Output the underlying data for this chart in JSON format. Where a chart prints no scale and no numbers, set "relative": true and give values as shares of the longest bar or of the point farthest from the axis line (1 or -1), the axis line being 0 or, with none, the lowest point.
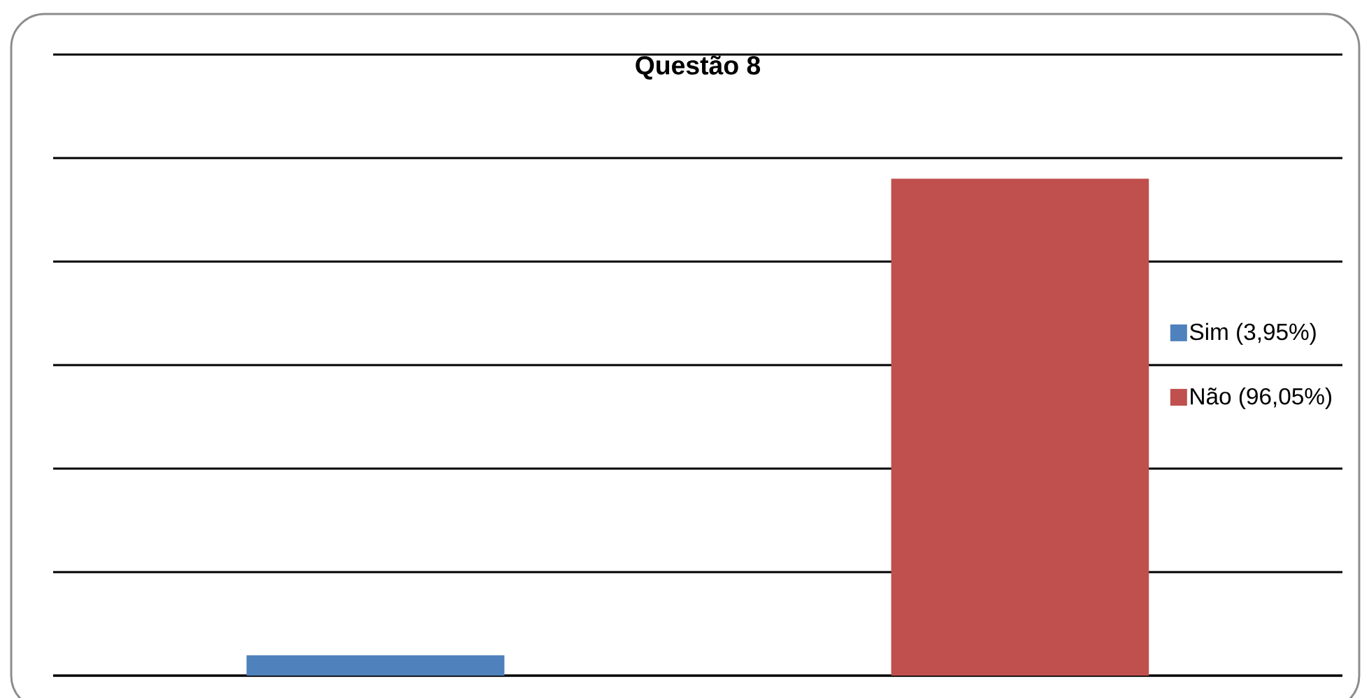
{
  "chart_data": {
    "type": "bar",
    "title": "Questão 8",
    "relative": true,
    "stacked": true,
    "categories": [
      null,
      null
    ],
    "series": [
      {
        "name": "Sim (3,95%)",
        "color": "#4f81bd",
        "values": [
          0.041,
          null
        ]
      },
      {
        "name": "Não (96,05%)",
        "color": "#c0504d",
        "values": [
          null,
          1
        ]
      }
    ],
    "grid": "y",
    "legend": "right"
  }
}
